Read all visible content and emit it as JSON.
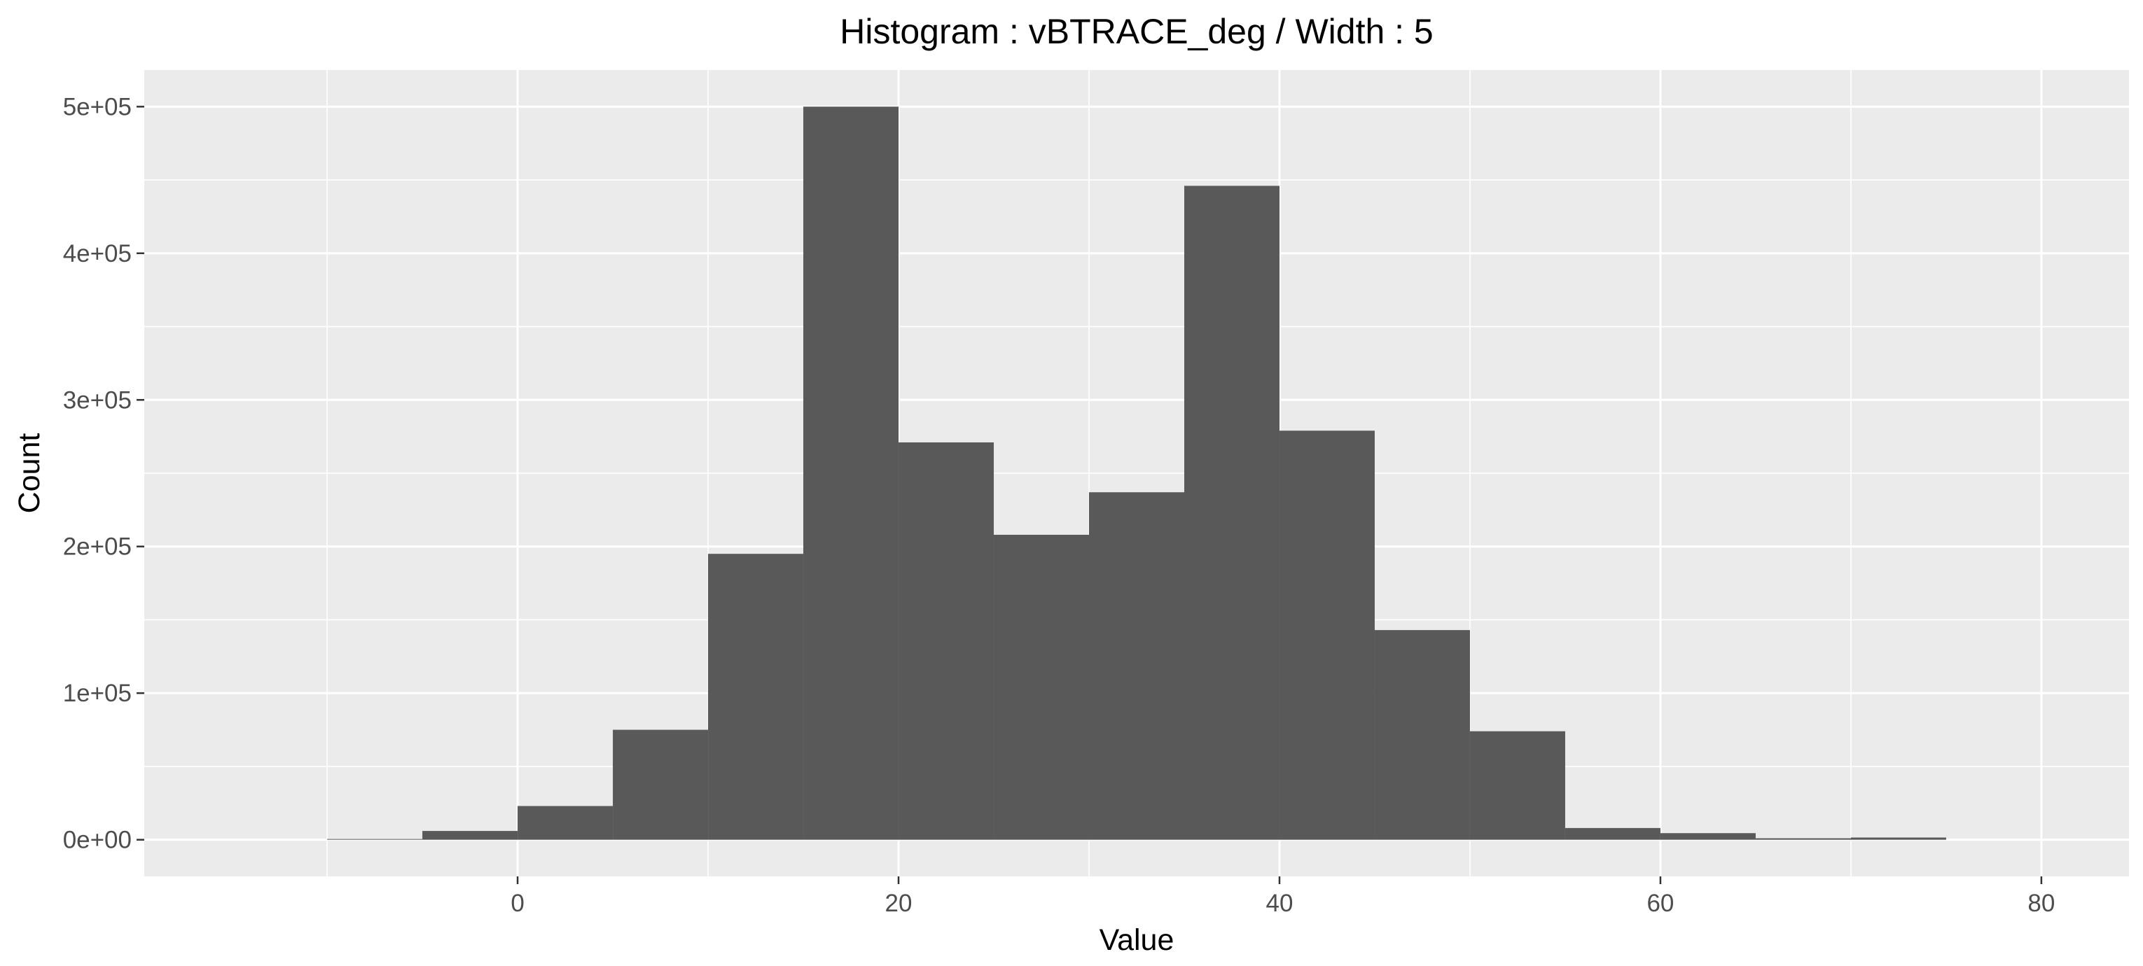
{
  "chart_data": {
    "type": "bar",
    "title": "Histogram : vBTRACE_deg / Width : 5",
    "xlabel": "Value",
    "ylabel": "Count",
    "bin_width": 5,
    "bins": [
      {
        "start": -10,
        "end": -5,
        "count": 500
      },
      {
        "start": -5,
        "end": 0,
        "count": 6000
      },
      {
        "start": 0,
        "end": 5,
        "count": 23000
      },
      {
        "start": 5,
        "end": 10,
        "count": 75000
      },
      {
        "start": 10,
        "end": 15,
        "count": 195000
      },
      {
        "start": 15,
        "end": 20,
        "count": 500000
      },
      {
        "start": 20,
        "end": 25,
        "count": 271000
      },
      {
        "start": 25,
        "end": 30,
        "count": 208000
      },
      {
        "start": 30,
        "end": 35,
        "count": 237000
      },
      {
        "start": 35,
        "end": 40,
        "count": 446000
      },
      {
        "start": 40,
        "end": 45,
        "count": 279000
      },
      {
        "start": 45,
        "end": 50,
        "count": 143000
      },
      {
        "start": 50,
        "end": 55,
        "count": 74000
      },
      {
        "start": 55,
        "end": 60,
        "count": 8000
      },
      {
        "start": 60,
        "end": 65,
        "count": 4500
      },
      {
        "start": 65,
        "end": 70,
        "count": 1000
      },
      {
        "start": 70,
        "end": 75,
        "count": 1500
      }
    ],
    "xlim": [
      -19.6,
      84.6
    ],
    "ylim": [
      -25000,
      525000
    ],
    "x_ticks": [
      0,
      20,
      40,
      60,
      80
    ],
    "x_tick_labels": [
      "0",
      "20",
      "40",
      "60",
      "80"
    ],
    "y_ticks": [
      0,
      100000,
      200000,
      300000,
      400000,
      500000
    ],
    "y_tick_labels": [
      "0e+00",
      "1e+05",
      "2e+05",
      "3e+05",
      "4e+05",
      "5e+05"
    ],
    "grid": true,
    "legend": "none",
    "colors": {
      "bar": "#595959",
      "panel": "#ebebeb",
      "grid": "#ffffff",
      "background": "#ffffff"
    }
  }
}
